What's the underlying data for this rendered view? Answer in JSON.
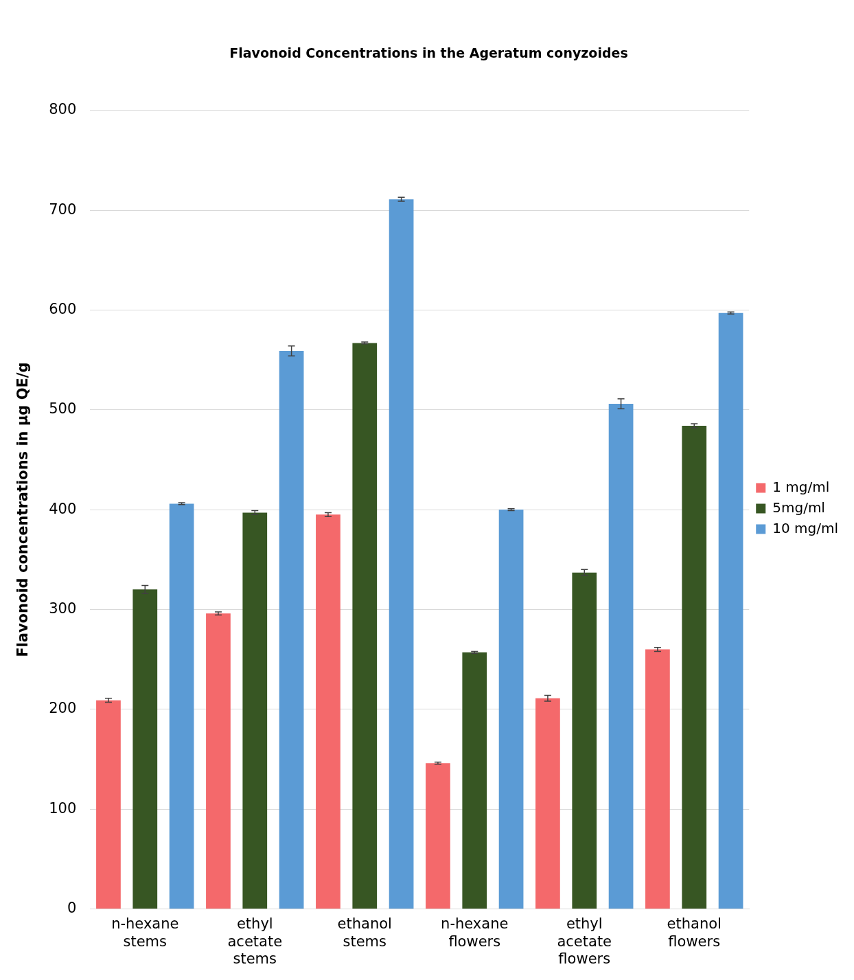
{
  "chart_data": {
    "type": "bar",
    "title": "Flavonoid Concentrations in the Ageratum conyzoides",
    "ylabel": "Flavonoid concentrations in µg QE/g",
    "categories": [
      "n-hexane stems",
      "ethyl acetate stems",
      "ethanol stems",
      "n-hexane flowers",
      "ethyl acetate flowers",
      "ethanol flowers"
    ],
    "series": [
      {
        "name": "1 mg/ml",
        "color": "#f4696b",
        "values": [
          209,
          296,
          395,
          146,
          211,
          260
        ],
        "errors": [
          2,
          1.5,
          2,
          1,
          3,
          2
        ]
      },
      {
        "name": "5mg/ml",
        "color": "#375623",
        "values": [
          320,
          397,
          567,
          257,
          337,
          484
        ],
        "errors": [
          4,
          2,
          1,
          1,
          3,
          2
        ]
      },
      {
        "name": "10 mg/ml",
        "color": "#5b9bd5",
        "values": [
          406,
          559,
          711,
          400,
          506,
          597
        ],
        "errors": [
          1,
          5,
          2,
          1,
          5,
          1
        ]
      }
    ],
    "ylim": [
      0,
      800
    ],
    "yticks": [
      0,
      100,
      200,
      300,
      400,
      500,
      600,
      700,
      800
    ],
    "grid": "y",
    "legend": "right"
  }
}
